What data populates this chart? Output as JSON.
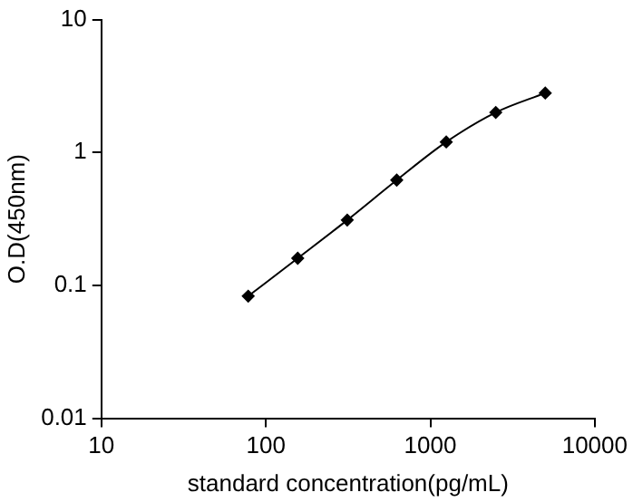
{
  "chart_data": {
    "type": "line",
    "xlabel": "standard concentration(pg/mL)",
    "ylabel": "O.D(450nm)",
    "x": [
      78.125,
      156.25,
      312.5,
      625,
      1250,
      2500,
      5000
    ],
    "series": [
      {
        "color": "#000000",
        "values": [
          0.083,
          0.16,
          0.31,
          0.62,
          1.2,
          2.0,
          2.8
        ]
      }
    ],
    "log": "xy",
    "xlim": [
      10,
      10000
    ],
    "ylim": [
      0.01,
      10
    ],
    "xticks": [
      10,
      100,
      1000,
      10000
    ],
    "yticks": [
      0.01,
      0.1,
      1,
      10
    ],
    "grid": false,
    "legend": false,
    "marker": "diamond",
    "line_style": "solid"
  }
}
